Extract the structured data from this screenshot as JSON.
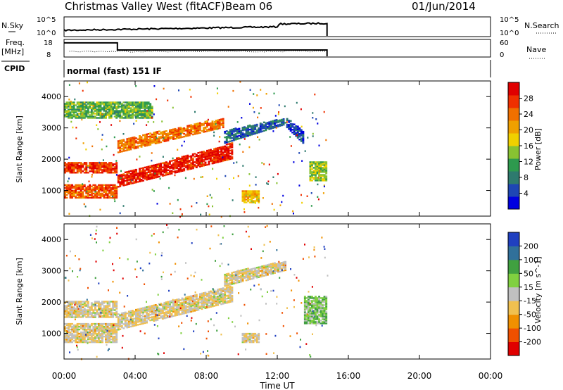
{
  "header": {
    "title": "Christmas Valley West (fitACF)",
    "beam": "Beam 06",
    "date": "01/Jun/2014"
  },
  "nsky_panel": {
    "left_label": "N.Sky",
    "left_ticks": [
      "10^5",
      "10^0"
    ],
    "right_ticks": [
      "10^5",
      "10^0"
    ],
    "right_label": "N.Search"
  },
  "freq_panel": {
    "left_label_1": "Freq.",
    "left_label_2": "[MHz]",
    "left_ticks": [
      "18",
      "8"
    ],
    "right_ticks": [
      "60",
      "0"
    ],
    "right_label": "Nave",
    "freq_steps": [
      {
        "t": 0.0,
        "f": 16.5
      },
      {
        "t": 3.0,
        "f": 16.5
      },
      {
        "t": 3.0,
        "f": 12.0
      },
      {
        "t": 14.8,
        "f": 12.0
      }
    ]
  },
  "cpid": {
    "label": "CPID",
    "text": "normal (fast) 151 IF"
  },
  "time_axis": {
    "tick_labels": [
      "00:00",
      "04:00",
      "08:00",
      "12:00",
      "16:00",
      "20:00",
      "00:00"
    ],
    "xlabel": "Time UT",
    "range_hours": [
      0,
      24
    ],
    "data_end_hours": 14.8
  },
  "chart_data": [
    {
      "type": "heatmap",
      "name": "power",
      "ylabel": "Slant Range [km]",
      "ytick_labels": [
        "1000",
        "2000",
        "3000",
        "4000"
      ],
      "ylim": [
        180,
        4500
      ],
      "colorbar_label": "Power [dB]",
      "colorbar_ticks": [
        "28",
        "24",
        "20",
        "16",
        "12",
        "8",
        "4"
      ],
      "colorbar_colors": [
        "#0000e0",
        "#1e46b4",
        "#2e7a6e",
        "#2e9a4e",
        "#88c232",
        "#f0d000",
        "#f0a000",
        "#f07000",
        "#f03000",
        "#e00000"
      ],
      "echo_bands": [
        {
          "t0": 0.0,
          "t1": 3.0,
          "r0": 1550,
          "r1": 1900,
          "level": 0.85
        },
        {
          "t0": 0.0,
          "t1": 3.0,
          "r0": 750,
          "r1": 1200,
          "level": 0.8
        },
        {
          "t0": 3.0,
          "t1": 9.5,
          "r0": 1100,
          "r1": 1500,
          "r1_end": 2500,
          "r0_end": 2000,
          "level": 0.9
        },
        {
          "t0": 3.0,
          "t1": 9.0,
          "r0": 2200,
          "r1": 2600,
          "r0_end": 3000,
          "r1_end": 3300,
          "level": 0.75
        },
        {
          "t0": 0.0,
          "t1": 5.0,
          "r0": 3300,
          "r1": 3800,
          "level": 0.4
        },
        {
          "t0": 9.0,
          "t1": 12.5,
          "r0": 2500,
          "r1": 2900,
          "r0_end": 3100,
          "r1_end": 3300,
          "level": 0.2
        },
        {
          "t0": 12.5,
          "t1": 13.5,
          "r0": 3000,
          "r1": 3300,
          "r0_end": 2500,
          "r1_end": 2900,
          "level": 0.15
        },
        {
          "t0": 13.8,
          "t1": 14.8,
          "r0": 1300,
          "r1": 1900,
          "level": 0.45
        },
        {
          "t0": 10.0,
          "t1": 11.0,
          "r0": 600,
          "r1": 1000,
          "level": 0.6
        }
      ]
    },
    {
      "type": "heatmap",
      "name": "velocity",
      "ylabel": "Slant Range [km]",
      "ytick_labels": [
        "1000",
        "2000",
        "3000",
        "4000"
      ],
      "ylim": [
        180,
        4500
      ],
      "colorbar_label": "Velocity [m s^-1]",
      "colorbar_ticks": [
        "200",
        "100",
        "50",
        "15",
        "-15",
        "-50",
        "-100",
        "-200"
      ],
      "colorbar_colors": [
        "#e00000",
        "#f05000",
        "#f09000",
        "#f0c050",
        "#c0c0c0",
        "#80d040",
        "#40a040",
        "#30709a",
        "#2040c0"
      ],
      "echo_bands": [
        {
          "t0": 0.0,
          "t1": 3.0,
          "r0": 1500,
          "r1": 2000,
          "level": 0.45
        },
        {
          "t0": 0.0,
          "t1": 3.0,
          "r0": 700,
          "r1": 1300,
          "level": 0.45
        },
        {
          "t0": 3.0,
          "t1": 9.5,
          "r0": 1100,
          "r1": 1600,
          "r0_end": 2000,
          "r1_end": 2500,
          "level": 0.45
        },
        {
          "t0": 9.0,
          "t1": 12.5,
          "r0": 2500,
          "r1": 2900,
          "r0_end": 3000,
          "r1_end": 3300,
          "level": 0.45
        },
        {
          "t0": 13.5,
          "t1": 14.8,
          "r0": 1300,
          "r1": 2200,
          "level": 0.62
        },
        {
          "t0": 10.0,
          "t1": 11.0,
          "r0": 700,
          "r1": 1000,
          "level": 0.45
        }
      ]
    }
  ]
}
